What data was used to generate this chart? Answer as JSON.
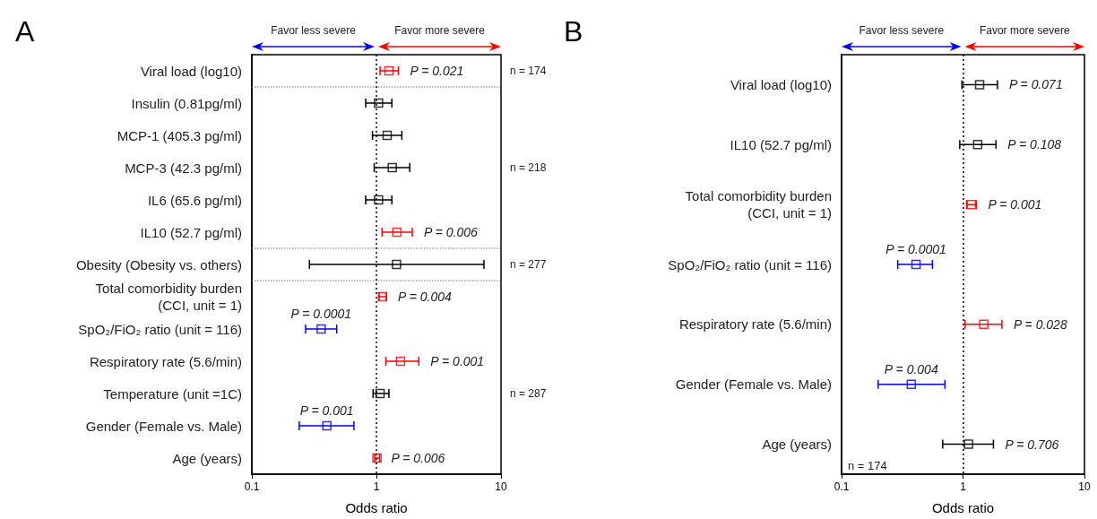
{
  "chart_data": [
    {
      "type": "scatter",
      "title": "A",
      "xlabel": "Odds ratio",
      "orientation": "horizontal",
      "log": "x",
      "marker": "square",
      "xlim": [
        0.1,
        10
      ],
      "xticks": [
        0.1,
        1,
        10
      ],
      "categories": [
        "Viral load (log10)",
        "Insulin (0.81pg/ml)",
        "MCP-1 (405.3 pg/ml)",
        "MCP-3 (42.3 pg/ml)",
        "IL6 (65.6 pg/ml)",
        "IL10 (52.7 pg/ml)",
        "Obesity (Obesity vs. others)",
        "Total comorbidity burden\n(CCI, unit = 1)",
        "SpO₂/FiO₂ ratio (unit = 116)",
        "Respiratory rate (5.6/min)",
        "Temperature (unit =1C)",
        "Gender (Female vs. Male)",
        "Age (years)"
      ],
      "values": [
        1.26,
        1.04,
        1.22,
        1.34,
        1.04,
        1.46,
        1.45,
        1.12,
        0.36,
        1.56,
        1.07,
        0.4,
        1.01
      ],
      "errors": [
        [
          1.07,
          1.5
        ],
        [
          0.82,
          1.33
        ],
        [
          0.93,
          1.6
        ],
        [
          0.96,
          1.85
        ],
        [
          0.82,
          1.33
        ],
        [
          1.11,
          1.94
        ],
        [
          0.29,
          7.3
        ],
        [
          1.05,
          1.2
        ],
        [
          0.27,
          0.48
        ],
        [
          1.19,
          2.19
        ],
        [
          0.94,
          1.26
        ],
        [
          0.24,
          0.66
        ],
        [
          0.97,
          1.06
        ]
      ],
      "colors": [
        "#ff0000",
        "#000000",
        "#000000",
        "#000000",
        "#000000",
        "#ff0000",
        "#000000",
        "#ff0000",
        "#0000ff",
        "#ff0000",
        "#000000",
        "#0000ff",
        "#ff0000"
      ],
      "ref_lines": [
        {
          "axis": "x",
          "value": 1,
          "line_style": "dotted",
          "color": "#000000"
        }
      ],
      "annotations": [
        "Favor less severe",
        "Favor more severe",
        {
          "text": "P = 0.021",
          "x": 1.26,
          "y": "Viral load (log10)"
        },
        {
          "text": "P = 0.006",
          "x": 1.46,
          "y": "IL10 (52.7 pg/ml)"
        },
        {
          "text": "P = 0.004",
          "x": 1.12,
          "y": "Total comorbidity burden\n(CCI, unit = 1)"
        },
        {
          "text": "P = 0.0001",
          "x": 0.36,
          "y": "SpO₂/FiO₂ ratio (unit = 116)"
        },
        {
          "text": "P = 0.001",
          "x": 1.56,
          "y": "Respiratory rate (5.6/min)"
        },
        {
          "text": "P = 0.001",
          "x": 0.4,
          "y": "Gender (Female vs. Male)"
        },
        {
          "text": "P = 0.006",
          "x": 1.01,
          "y": "Age (years)"
        },
        "n = 174",
        "n = 218",
        "n = 277",
        "n = 287"
      ]
    },
    {
      "type": "scatter",
      "title": "B",
      "xlabel": "Odds ratio",
      "orientation": "horizontal",
      "log": "x",
      "marker": "square",
      "xlim": [
        0.1,
        10
      ],
      "xticks": [
        0.1,
        1,
        10
      ],
      "categories": [
        "Viral load (log10)",
        "IL10 (52.7 pg/ml)",
        "Total comorbidity burden\n(CCI, unit = 1)",
        "SpO₂/FiO₂ ratio (unit = 116)",
        "Respiratory rate (5.6/min)",
        "Gender (Female vs. Male)",
        "Age (years)"
      ],
      "values": [
        1.37,
        1.32,
        1.17,
        0.41,
        1.48,
        0.375,
        1.11
      ],
      "errors": [
        [
          0.98,
          1.92
        ],
        [
          0.94,
          1.87
        ],
        [
          1.07,
          1.29
        ],
        [
          0.29,
          0.56
        ],
        [
          1.04,
          2.09
        ],
        [
          0.2,
          0.71
        ],
        [
          0.68,
          1.78
        ]
      ],
      "colors": [
        "#000000",
        "#000000",
        "#ff0000",
        "#0000ff",
        "#ff0000",
        "#0000ff",
        "#000000"
      ],
      "ref_lines": [
        {
          "axis": "x",
          "value": 1,
          "line_style": "dotted",
          "color": "#000000"
        }
      ],
      "annotations": [
        "Favor less severe",
        "Favor more severe",
        {
          "text": "P = 0.071",
          "x": 1.37,
          "y": "Viral load (log10)"
        },
        {
          "text": "P = 0.108",
          "x": 1.32,
          "y": "IL10 (52.7 pg/ml)"
        },
        {
          "text": "P = 0.001",
          "x": 1.17,
          "y": "Total comorbidity burden\n(CCI, unit = 1)"
        },
        {
          "text": "P = 0.0001",
          "x": 0.41,
          "y": "SpO₂/FiO₂ ratio (unit = 116)"
        },
        {
          "text": "P = 0.028",
          "x": 1.48,
          "y": "Respiratory rate (5.6/min)"
        },
        {
          "text": "P = 0.004",
          "x": 0.375,
          "y": "Gender (Female vs. Male)"
        },
        {
          "text": "P = 0.706",
          "x": 1.11,
          "y": "Age (years)"
        },
        "n = 174"
      ]
    }
  ]
}
